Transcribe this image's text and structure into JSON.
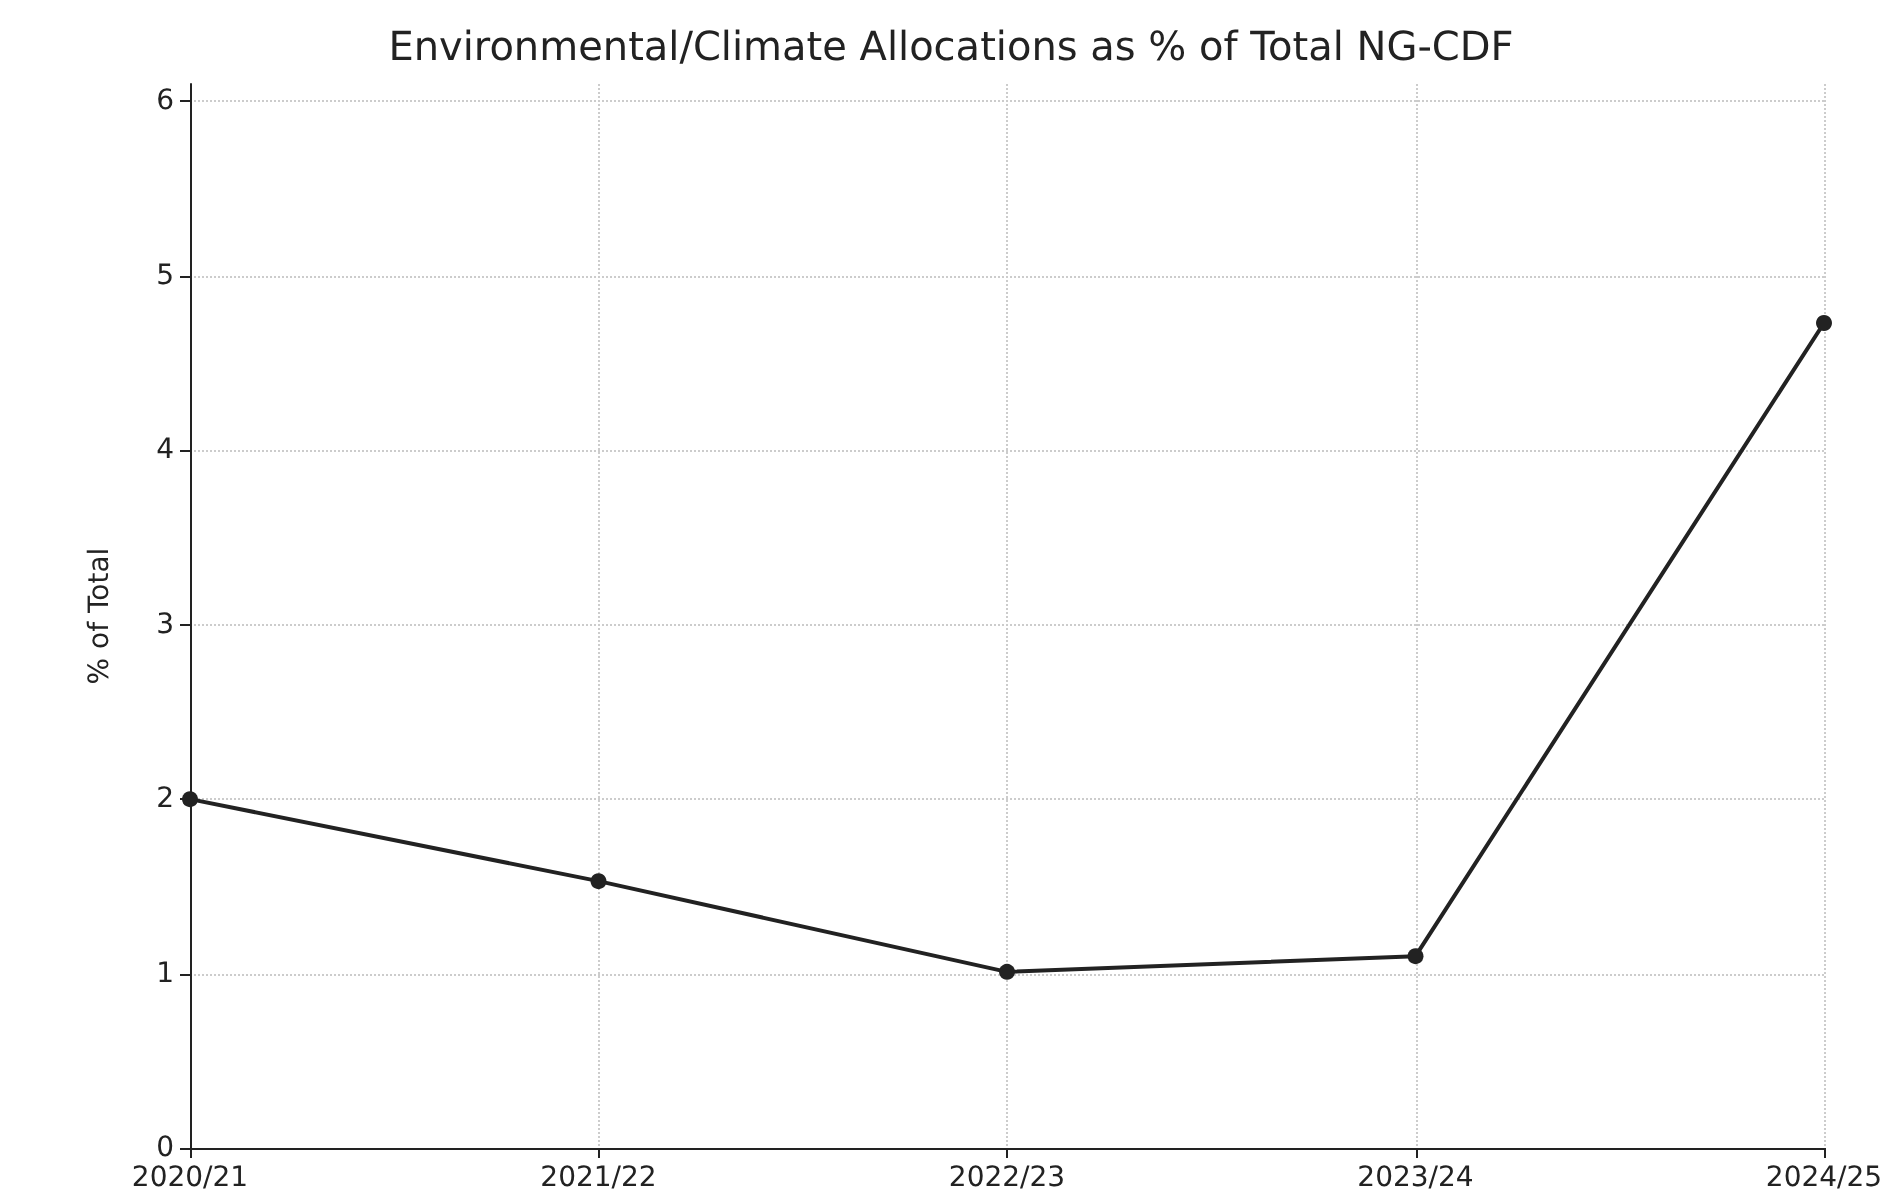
{
  "chart_data": {
    "type": "line",
    "title": "Environmental/Climate Allocations as % of Total NG-CDF",
    "ylabel": "% of Total",
    "categories": [
      "2020/21",
      "2021/22",
      "2022/23",
      "2023/24",
      "2024/25"
    ],
    "series": [
      {
        "color": "#222222",
        "values": [
          2.0,
          1.53,
          1.01,
          1.1,
          4.73
        ]
      }
    ],
    "ylim": [
      0,
      6.1
    ],
    "yticks": [
      0,
      1,
      2,
      3,
      4,
      5,
      6
    ],
    "grid": true,
    "marker": "circle",
    "line_style": "solid"
  }
}
